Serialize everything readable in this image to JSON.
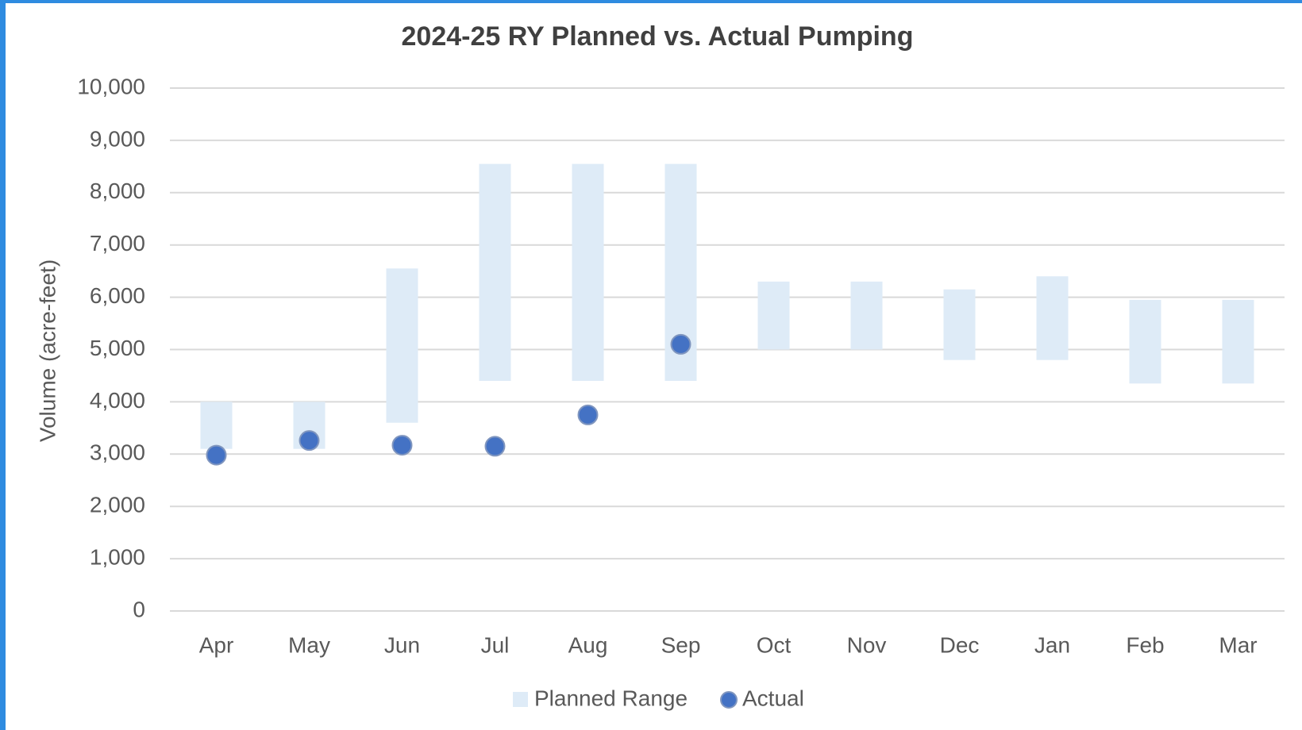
{
  "chart_data": {
    "type": "range-bar-dot",
    "title": "2024-25 RY Planned vs. Actual Pumping",
    "y_label": "Volume (acre-feet)",
    "categories": [
      "Apr",
      "May",
      "Jun",
      "Jul",
      "Aug",
      "Sep",
      "Oct",
      "Nov",
      "Dec",
      "Jan",
      "Feb",
      "Mar"
    ],
    "series": [
      {
        "name": "Planned Range",
        "color": "#deebf7",
        "low": [
          3100,
          3100,
          3600,
          4400,
          4400,
          4400,
          5000,
          5000,
          4800,
          4800,
          4350,
          4350
        ],
        "high": [
          4000,
          4000,
          6550,
          8550,
          8550,
          8550,
          6300,
          6300,
          6150,
          6400,
          5950,
          5950
        ]
      },
      {
        "name": "Actual",
        "color": "#4472c4",
        "values": [
          2980,
          3260,
          3170,
          3150,
          3750,
          5100,
          null,
          null,
          null,
          null,
          null,
          null
        ]
      }
    ],
    "ylim": [
      0,
      10000
    ],
    "yticks": [
      0,
      {
        "value": 1000,
        "label": "1,000"
      },
      {
        "value": 2000,
        "label": "2,000"
      },
      {
        "value": 3000,
        "label": "3,000"
      },
      {
        "value": 4000,
        "label": "4,000"
      },
      {
        "value": 5000,
        "label": "5,000"
      },
      {
        "value": 6000,
        "label": "6,000"
      },
      {
        "value": 7000,
        "label": "7,000"
      },
      {
        "value": 8000,
        "label": "8,000"
      },
      {
        "value": 9000,
        "label": "9,000"
      },
      {
        "value": 10000,
        "label": "10,000"
      }
    ],
    "grid": true
  }
}
